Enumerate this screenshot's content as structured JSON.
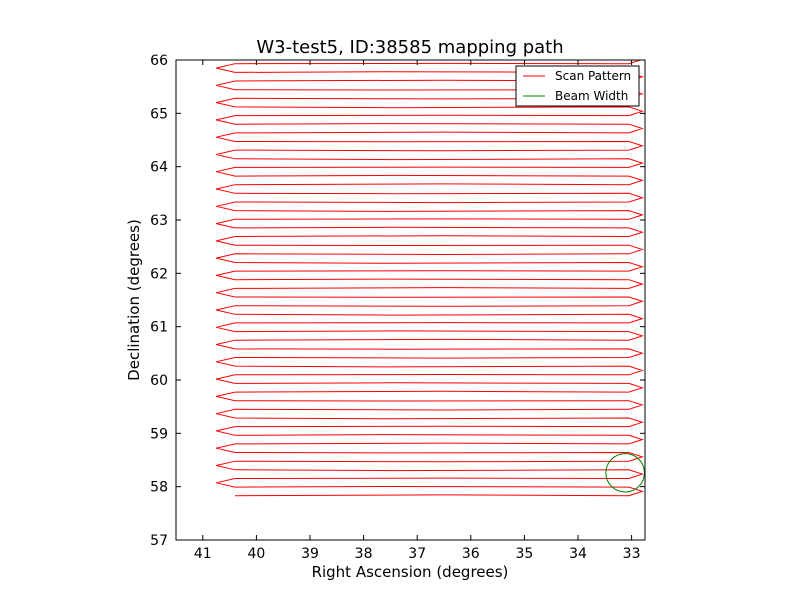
{
  "chart_data": {
    "type": "line",
    "title": "W3-test5, ID:38585 mapping path",
    "xlabel": "Right Ascension (degrees)",
    "ylabel": "Declination (degrees)",
    "xlim": [
      41.5,
      32.75
    ],
    "ylim": [
      57,
      66
    ],
    "x_ticks": [
      41,
      40,
      39,
      38,
      37,
      36,
      35,
      34,
      33
    ],
    "y_ticks": [
      57,
      58,
      59,
      60,
      61,
      62,
      63,
      64,
      65,
      66
    ],
    "grid": false,
    "legend_position": "top-right",
    "series": [
      {
        "name": "Scan Pattern",
        "color": "#ff0000",
        "scan": {
          "ra_left": 40.75,
          "ra_right": 32.8,
          "ra_left_indent": 40.4,
          "ra_right_indent": 33.05,
          "dec_start": 57.83,
          "dec_end": 65.93,
          "row_spacing": 0.162
        }
      },
      {
        "name": "Beam Width",
        "color": "#008000",
        "circle": {
          "ra_center": 33.12,
          "dec_center": 58.26,
          "radius_deg": 0.36
        }
      }
    ]
  }
}
